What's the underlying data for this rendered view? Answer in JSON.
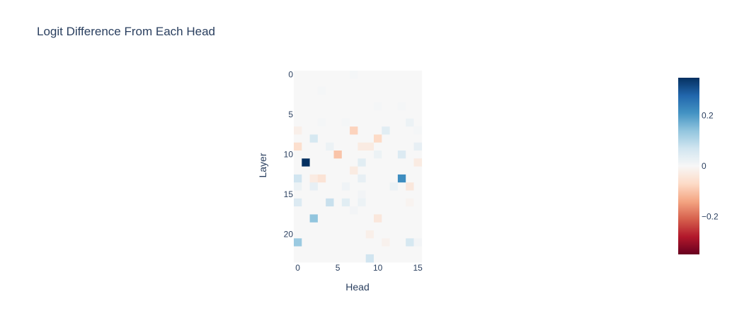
{
  "chart_data": {
    "type": "heatmap",
    "title": "Logit Difference From Each Head",
    "xlabel": "Head",
    "ylabel": "Layer",
    "n_heads": 16,
    "n_layers": 24,
    "x_ticks": [
      "0",
      "5",
      "10",
      "15"
    ],
    "y_ticks": [
      "0",
      "5",
      "10",
      "15",
      "20"
    ],
    "colorbar_ticks": [
      "0.2",
      "0",
      "−0.2"
    ],
    "zmin": -0.35,
    "zmax": 0.35,
    "colorscale": [
      "#67001f",
      "#b2182b",
      "#d6604d",
      "#f4a582",
      "#fddbc7",
      "#f7f7f7",
      "#d1e5f0",
      "#92c5de",
      "#4393c3",
      "#2166ac",
      "#053061"
    ],
    "grid": false,
    "legend": "colorbar-right",
    "values": [
      [
        0,
        0,
        0,
        0,
        0,
        0,
        0,
        0.005,
        0,
        0,
        0,
        0,
        0,
        0,
        0,
        0
      ],
      [
        0,
        0,
        0,
        0,
        0,
        0,
        0,
        0,
        0,
        0,
        0,
        0,
        0,
        0,
        0,
        0
      ],
      [
        0,
        0,
        0,
        0.005,
        0,
        0,
        0,
        0,
        0,
        0,
        0,
        0,
        0,
        0,
        0,
        0
      ],
      [
        0,
        0,
        0,
        0,
        0,
        0,
        0,
        0,
        0,
        0,
        0,
        0,
        0,
        0,
        0,
        0
      ],
      [
        0,
        0,
        0,
        0,
        0,
        0,
        0,
        0,
        0,
        0,
        0.005,
        0,
        0,
        0.005,
        0,
        0
      ],
      [
        0,
        0,
        0,
        0,
        0,
        0,
        0,
        0,
        0,
        0,
        0,
        0,
        0,
        0,
        0,
        0
      ],
      [
        0,
        0,
        0,
        0.005,
        0,
        0,
        0.005,
        0,
        0,
        0,
        0,
        0,
        0,
        0,
        0.02,
        0
      ],
      [
        -0.02,
        0,
        0,
        0,
        0,
        0,
        0,
        -0.08,
        0,
        0,
        0,
        0.04,
        0,
        0,
        0,
        0.005
      ],
      [
        0,
        0,
        0.06,
        0,
        0,
        0,
        0,
        0,
        0,
        0,
        -0.07,
        0,
        0,
        0,
        0,
        0
      ],
      [
        -0.06,
        0,
        0,
        0,
        0.02,
        0,
        0,
        0,
        -0.03,
        -0.03,
        0,
        0,
        0,
        0,
        0,
        0.03
      ],
      [
        0,
        0,
        0,
        0,
        0,
        -0.1,
        0,
        0,
        0,
        0,
        0.02,
        0,
        0,
        0.05,
        0,
        0
      ],
      [
        0,
        0.35,
        0,
        0,
        0,
        0,
        0,
        0,
        0.04,
        0,
        0,
        0,
        0,
        0,
        0,
        -0.03
      ],
      [
        0,
        0,
        0,
        0,
        0,
        0,
        0,
        -0.03,
        0,
        0,
        0,
        0,
        0,
        0,
        0,
        0
      ],
      [
        0.07,
        0,
        -0.03,
        -0.05,
        0,
        0,
        0,
        0,
        0.03,
        0,
        0,
        0,
        0,
        0.22,
        0,
        0
      ],
      [
        0.02,
        0,
        0.03,
        0,
        0,
        0,
        0.015,
        0,
        0,
        0,
        0,
        0,
        0.02,
        0,
        -0.04,
        0
      ],
      [
        0,
        0,
        0,
        0,
        0,
        0,
        0,
        0,
        0.01,
        0,
        0,
        0,
        0,
        0,
        0,
        0
      ],
      [
        0.05,
        0,
        0,
        0,
        0.08,
        0,
        0.04,
        0,
        0.02,
        0,
        0,
        0,
        0,
        0,
        -0.01,
        0
      ],
      [
        0,
        0,
        0,
        0,
        0,
        0,
        0,
        0.01,
        0,
        0,
        0,
        0,
        0,
        0,
        0,
        0
      ],
      [
        0,
        0,
        0.14,
        0,
        0,
        0,
        0,
        0,
        0,
        0,
        -0.04,
        0,
        0,
        0,
        0,
        0
      ],
      [
        0,
        0,
        0,
        0,
        0,
        0,
        0,
        0,
        0,
        0,
        0,
        0,
        0,
        0,
        0,
        0
      ],
      [
        0,
        0,
        0,
        0,
        0,
        0,
        0,
        0,
        0,
        -0.02,
        0,
        0,
        0,
        0,
        0,
        0
      ],
      [
        0.13,
        0,
        0,
        0,
        0,
        0,
        0,
        0,
        0,
        0,
        0,
        -0.015,
        0,
        0,
        0.06,
        0.01
      ],
      [
        0,
        0,
        0,
        0,
        0,
        0,
        0,
        0,
        0,
        0,
        0,
        0,
        0,
        0,
        0,
        0
      ],
      [
        0,
        0,
        0,
        0,
        0,
        0,
        0,
        0,
        0,
        0.07,
        0,
        0,
        0,
        0,
        0,
        0
      ]
    ]
  }
}
